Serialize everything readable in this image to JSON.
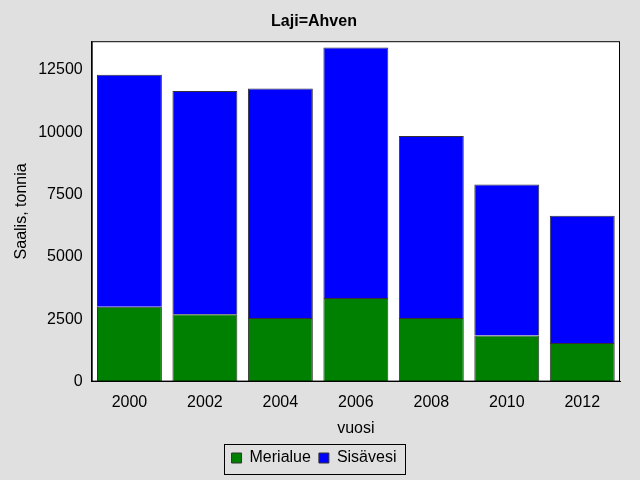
{
  "chart_data": {
    "type": "bar",
    "title": "Laji=Ahven",
    "x_label": "vuosi",
    "y_label": "Saalis, tonnia",
    "categories": [
      "2000",
      "2002",
      "2004",
      "2006",
      "2008",
      "2010",
      "2012"
    ],
    "series": [
      {
        "name": "Merialue",
        "color": "#008000",
        "values": [
          3000,
          2700,
          2550,
          3350,
          2550,
          1850,
          1550
        ]
      },
      {
        "name": "Sisävesi",
        "color": "#0000ff",
        "values": [
          9300,
          8950,
          9200,
          10050,
          7300,
          6050,
          5100
        ]
      }
    ],
    "ylim": [
      0,
      13650
    ],
    "yticks": [
      0,
      2500,
      5000,
      7500,
      10000,
      12500
    ],
    "stacked": true,
    "grid": false,
    "legend": "bottom"
  }
}
